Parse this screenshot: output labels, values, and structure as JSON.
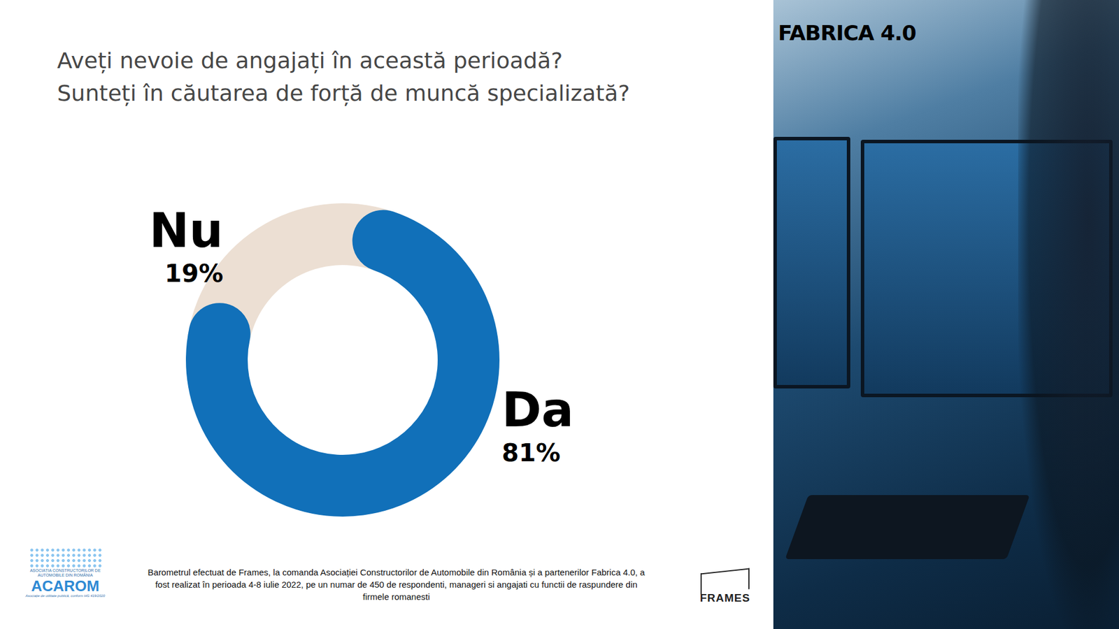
{
  "chart_data": {
    "type": "donut",
    "title": "Aveți nevoie de angajați în această perioadă?",
    "subtitle": "Sunteți în căutarea de forță de muncă specializată?",
    "categories": [
      "Da",
      "Nu"
    ],
    "values": [
      81,
      19
    ],
    "value_labels": [
      "81%",
      "19%"
    ],
    "colors": [
      "#1170b9",
      "#ecdfd3"
    ],
    "data_labels": true,
    "tick_labels": false,
    "brand": "FABRICA 4.0",
    "caption": "Barometrul efectuat de  Frames, la comanda Asociației Constructorilor de Automobile din România și a partenerilor Fabrica 4.0, a fost realizat în perioada 4-8 iulie 2022, pe un numar de 450 de respondenti, manageri si angajati cu functii de raspundere din firmele romanesti",
    "logos": {
      "acarom_name": "ASOCIAȚIA CONSTRUCTORILOR DE AUTOMOBILE DIN ROMÂNIA",
      "acarom": "ACAROM",
      "acarom_note": "Asociație de utilitate publică, conform HG 419/2020",
      "frames": "FRAMES"
    }
  }
}
